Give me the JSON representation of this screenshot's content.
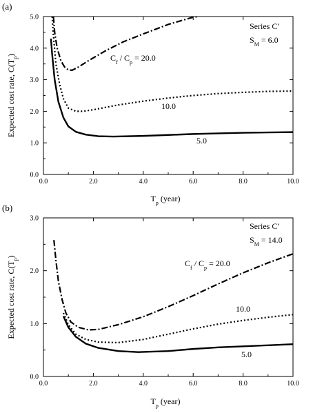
{
  "chart_data": [
    {
      "type": "line",
      "panel_label": "(a)",
      "xlabel": {
        "main": "T",
        "sub": "p",
        "rest": " (year)"
      },
      "ylabel": {
        "main": "Expected cost rate,  C(T",
        "sub": "p",
        "rest": ")"
      },
      "xlim": [
        0,
        10
      ],
      "ylim": [
        0,
        5
      ],
      "x_ticks": [
        0,
        2,
        4,
        6,
        8,
        10
      ],
      "x_tick_labels": [
        "0.0",
        "2.0",
        "4.0",
        "6.0",
        "8.0",
        "10.0"
      ],
      "y_ticks": [
        0,
        1,
        2,
        3,
        4,
        5
      ],
      "y_tick_labels": [
        "0.0",
        "1.0",
        "2.0",
        "3.0",
        "4.0",
        "5.0"
      ],
      "annotation_lines": [
        {
          "main": "Series C'",
          "sub": "",
          "rest": ""
        },
        {
          "main": "S",
          "sub": "M",
          "rest": " = 6.0"
        }
      ],
      "series": [
        {
          "label_parts": {
            "a": "C",
            "a_sub": "f",
            "mid": " / C",
            "b_sub": "p",
            "rest": " = 20.0"
          },
          "style": "dashdot",
          "points": [
            [
              0.4,
              5.0
            ],
            [
              0.45,
              4.5
            ],
            [
              0.55,
              4.0
            ],
            [
              0.7,
              3.6
            ],
            [
              0.85,
              3.4
            ],
            [
              1.0,
              3.31
            ],
            [
              1.15,
              3.3
            ],
            [
              1.4,
              3.4
            ],
            [
              1.8,
              3.6
            ],
            [
              2.5,
              3.92
            ],
            [
              3.2,
              4.2
            ],
            [
              4.0,
              4.45
            ],
            [
              5.0,
              4.75
            ],
            [
              6.0,
              4.98
            ],
            [
              6.2,
              5.0
            ]
          ]
        },
        {
          "label_parts": {
            "a": "",
            "a_sub": "",
            "mid": "",
            "b_sub": "",
            "rest": "10.0"
          },
          "style": "dotted",
          "points": [
            [
              0.35,
              5.0
            ],
            [
              0.4,
              4.4
            ],
            [
              0.5,
              3.5
            ],
            [
              0.65,
              2.85
            ],
            [
              0.8,
              2.4
            ],
            [
              1.0,
              2.1
            ],
            [
              1.3,
              2.0
            ],
            [
              1.6,
              2.0
            ],
            [
              2.0,
              2.05
            ],
            [
              3.0,
              2.2
            ],
            [
              4.0,
              2.32
            ],
            [
              5.0,
              2.42
            ],
            [
              6.0,
              2.5
            ],
            [
              7.0,
              2.56
            ],
            [
              8.0,
              2.6
            ],
            [
              9.0,
              2.63
            ],
            [
              10.0,
              2.64
            ]
          ]
        },
        {
          "label_parts": {
            "a": "",
            "a_sub": "",
            "mid": "",
            "b_sub": "",
            "rest": "5.0"
          },
          "style": "solid",
          "points": [
            [
              0.3,
              4.3
            ],
            [
              0.35,
              3.8
            ],
            [
              0.45,
              3.0
            ],
            [
              0.6,
              2.3
            ],
            [
              0.8,
              1.8
            ],
            [
              1.0,
              1.52
            ],
            [
              1.3,
              1.35
            ],
            [
              1.7,
              1.26
            ],
            [
              2.2,
              1.21
            ],
            [
              2.8,
              1.2
            ],
            [
              4.0,
              1.22
            ],
            [
              5.0,
              1.25
            ],
            [
              6.0,
              1.28
            ],
            [
              7.0,
              1.3
            ],
            [
              8.0,
              1.32
            ],
            [
              9.0,
              1.33
            ],
            [
              10.0,
              1.34
            ]
          ]
        }
      ]
    },
    {
      "type": "line",
      "panel_label": "(b)",
      "xlabel": {
        "main": "T",
        "sub": "p",
        "rest": " (year)"
      },
      "ylabel": {
        "main": "Expected cost rate,  C(T",
        "sub": "p",
        "rest": ")"
      },
      "xlim": [
        0,
        10
      ],
      "ylim": [
        0,
        3
      ],
      "x_ticks": [
        0,
        2,
        4,
        6,
        8,
        10
      ],
      "x_tick_labels": [
        "0.0",
        "2.0",
        "4.0",
        "6.0",
        "8.0",
        "10.0"
      ],
      "y_ticks": [
        0,
        1,
        2,
        3
      ],
      "y_tick_labels": [
        "0.0",
        "1.0",
        "2.0",
        "3.0"
      ],
      "annotation_lines": [
        {
          "main": "Series C'",
          "sub": "",
          "rest": ""
        },
        {
          "main": "S",
          "sub": "M",
          "rest": " = 14.0"
        }
      ],
      "series": [
        {
          "label_parts": {
            "a": "C",
            "a_sub": "f",
            "mid": " / C",
            "b_sub": "p",
            "rest": " = 20.0"
          },
          "style": "dashdot",
          "points": [
            [
              0.42,
              2.58
            ],
            [
              0.5,
              2.2
            ],
            [
              0.6,
              1.8
            ],
            [
              0.75,
              1.45
            ],
            [
              0.9,
              1.2
            ],
            [
              1.1,
              1.03
            ],
            [
              1.4,
              0.93
            ],
            [
              1.8,
              0.88
            ],
            [
              2.2,
              0.89
            ],
            [
              3.0,
              0.98
            ],
            [
              4.0,
              1.13
            ],
            [
              5.0,
              1.32
            ],
            [
              6.0,
              1.53
            ],
            [
              7.0,
              1.75
            ],
            [
              8.0,
              1.96
            ],
            [
              9.0,
              2.15
            ],
            [
              10.0,
              2.32
            ]
          ]
        },
        {
          "label_parts": {
            "a": "",
            "a_sub": "",
            "mid": "",
            "b_sub": "",
            "rest": "10.0"
          },
          "style": "dotted",
          "points": [
            [
              0.8,
              1.2
            ],
            [
              1.0,
              0.98
            ],
            [
              1.3,
              0.8
            ],
            [
              1.7,
              0.7
            ],
            [
              2.2,
              0.65
            ],
            [
              3.0,
              0.64
            ],
            [
              4.0,
              0.7
            ],
            [
              5.0,
              0.8
            ],
            [
              6.0,
              0.9
            ],
            [
              7.0,
              0.99
            ],
            [
              8.0,
              1.06
            ],
            [
              9.0,
              1.12
            ],
            [
              10.0,
              1.17
            ]
          ]
        },
        {
          "label_parts": {
            "a": "",
            "a_sub": "",
            "mid": "",
            "b_sub": "",
            "rest": "5.0"
          },
          "style": "solid",
          "points": [
            [
              0.8,
              1.14
            ],
            [
              1.0,
              0.93
            ],
            [
              1.3,
              0.75
            ],
            [
              1.7,
              0.62
            ],
            [
              2.2,
              0.54
            ],
            [
              3.0,
              0.48
            ],
            [
              3.8,
              0.46
            ],
            [
              5.0,
              0.48
            ],
            [
              6.0,
              0.52
            ],
            [
              7.0,
              0.55
            ],
            [
              8.0,
              0.57
            ],
            [
              9.0,
              0.59
            ],
            [
              10.0,
              0.61
            ]
          ]
        }
      ]
    }
  ]
}
